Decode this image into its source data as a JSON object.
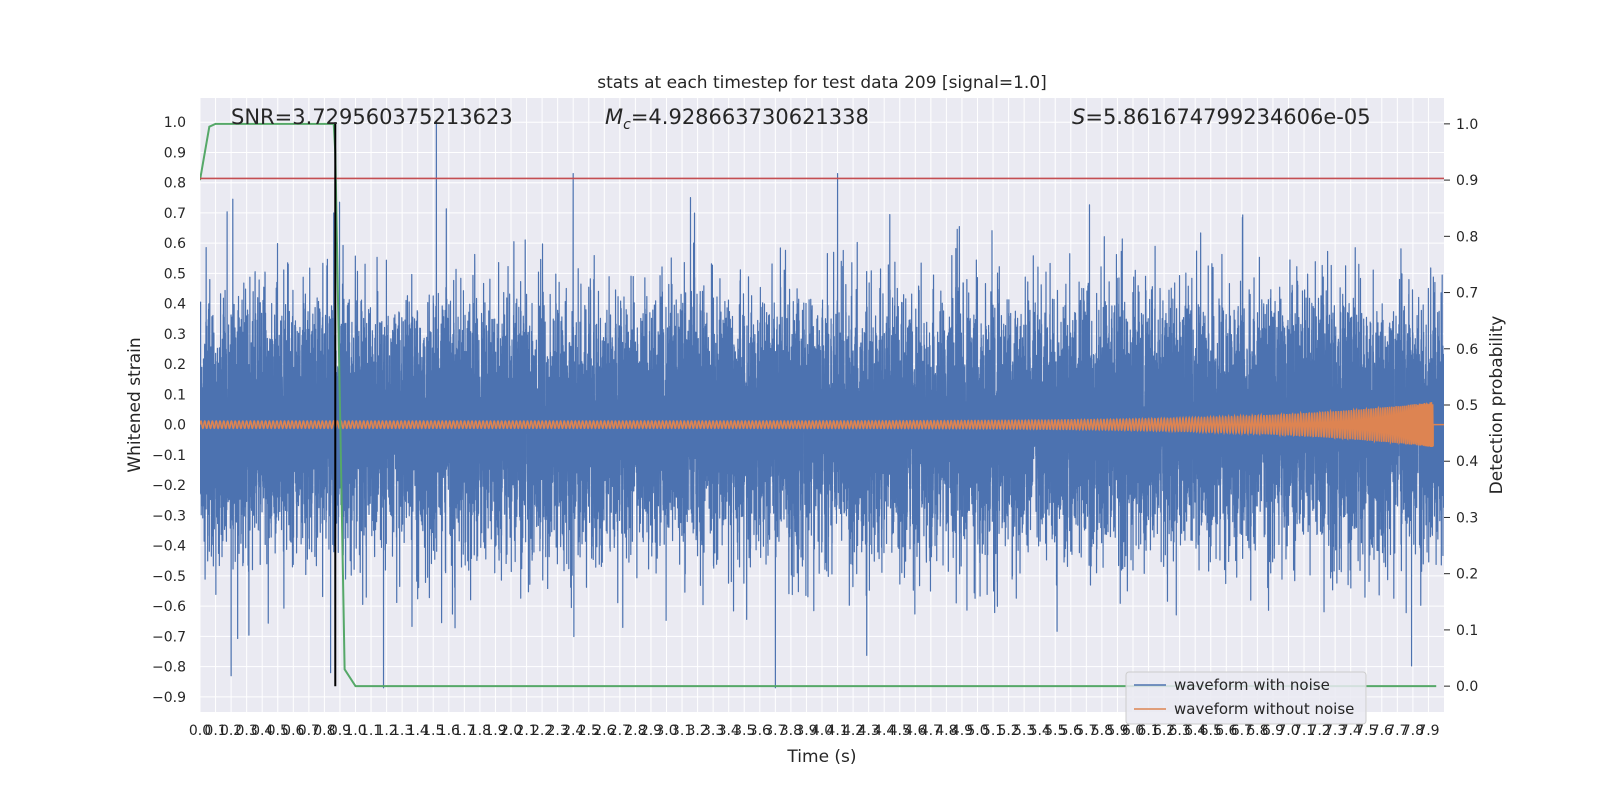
{
  "chart_data": {
    "type": "line",
    "title": "stats at each timestep for test data 209 [signal=1.0]",
    "xlabel": "Time (s)",
    "ylabel": "Whitened strain",
    "y2label": "Detection probability",
    "xlim": [
      0.0,
      8.0
    ],
    "ylim": [
      -0.95,
      1.08
    ],
    "y2lim": [
      -0.046,
      1.046
    ],
    "x_ticks": [
      0.0,
      0.1,
      0.2,
      0.3,
      0.4,
      0.5,
      0.6,
      0.7,
      0.8,
      0.9,
      1.0,
      1.1,
      1.2,
      1.3,
      1.4,
      1.5,
      1.6,
      1.7,
      1.8,
      1.9,
      2.0,
      2.1,
      2.2,
      2.3,
      2.4,
      2.5,
      2.6,
      2.7,
      2.8,
      2.9,
      3.0,
      3.1,
      3.2,
      3.3,
      3.4,
      3.5,
      3.6,
      3.7,
      3.8,
      3.9,
      4.0,
      4.1,
      4.2,
      4.3,
      4.4,
      4.5,
      4.6,
      4.7,
      4.8,
      4.9,
      5.0,
      5.1,
      5.2,
      5.3,
      5.4,
      5.5,
      5.6,
      5.7,
      5.8,
      5.9,
      6.0,
      6.1,
      6.2,
      6.3,
      6.4,
      6.5,
      6.6,
      6.7,
      6.8,
      6.9,
      7.0,
      7.1,
      7.2,
      7.3,
      7.4,
      7.5,
      7.6,
      7.7,
      7.8,
      7.9
    ],
    "y_ticks": [
      -0.9,
      -0.8,
      -0.7,
      -0.6,
      -0.5,
      -0.4,
      -0.3,
      -0.2,
      -0.1,
      0.0,
      0.1,
      0.2,
      0.3,
      0.4,
      0.5,
      0.6,
      0.7,
      0.8,
      0.9,
      1.0
    ],
    "y2_ticks": [
      0.0,
      0.1,
      0.2,
      0.3,
      0.4,
      0.5,
      0.6,
      0.7,
      0.8,
      0.9,
      1.0
    ],
    "annotations": [
      {
        "text": "SNR=3.729560375213623",
        "x": 0.2
      },
      {
        "text": "=4.928663730621338",
        "symbol": "M",
        "sub": "c",
        "x": 2.6
      },
      {
        "text": "=5.861674799234606e-05",
        "symbol": "S",
        "x": 5.6
      }
    ],
    "series": [
      {
        "name": "waveform with noise",
        "color": "#4c72b0",
        "style": "noise",
        "sample_rate": 2048,
        "duration": 8.0,
        "std": 0.2,
        "spikes": [
          [
            1.52,
            1.0
          ],
          [
            0.86,
            0.7
          ],
          [
            2.4,
            0.83
          ],
          [
            4.1,
            0.83
          ],
          [
            3.7,
            -0.87
          ],
          [
            1.18,
            -0.87
          ],
          [
            0.84,
            -0.82
          ],
          [
            0.2,
            -0.83
          ]
        ]
      },
      {
        "name": "waveform without noise",
        "color": "#dd8452",
        "style": "chirp",
        "x_end": 7.93,
        "amp_start": 0.012,
        "amp_end": 0.075
      },
      {
        "name": "",
        "color": "#55a868",
        "axis": "right",
        "x": [
          0.0,
          0.06,
          0.1,
          0.86,
          0.87,
          0.9,
          0.93,
          1.0,
          7.95
        ],
        "values": [
          0.9,
          0.995,
          1.0,
          1.0,
          0.95,
          0.5,
          0.03,
          0.0,
          0.0
        ]
      },
      {
        "name": "",
        "color": "#c44e52",
        "axis": "left",
        "style": "hline",
        "values": [
          0.814
        ]
      },
      {
        "name": "",
        "color": "#000000",
        "axis": "left",
        "style": "vline",
        "x": 0.87,
        "y_range": [
          -0.865,
          1.0
        ]
      }
    ],
    "legend": {
      "placement": "lower right",
      "entries": [
        "waveform with noise",
        "waveform without noise"
      ]
    },
    "grid": true,
    "colors": {
      "background": "#eaeaf2",
      "grid": "#ffffff",
      "text": "#262626"
    }
  }
}
